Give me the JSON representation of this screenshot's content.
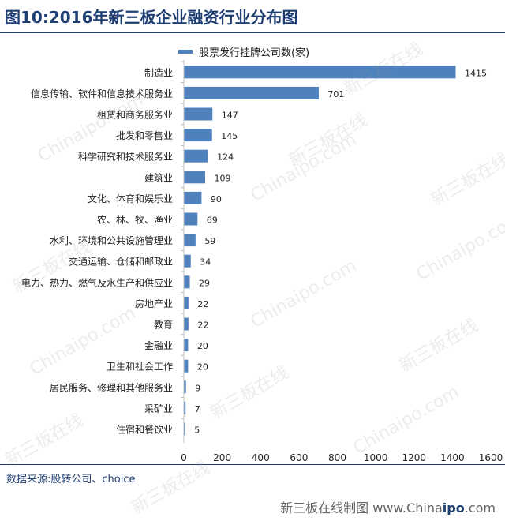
{
  "header": {
    "title": "图10:2016年新三板企业融资行业分布图"
  },
  "colors": {
    "bar": "#4f81bd",
    "title": "#1f3f72"
  },
  "chart_data": {
    "type": "bar",
    "orientation": "horizontal",
    "categories": [
      "制造业",
      "信息传输、软件和信息技术服务业",
      "租赁和商务服务业",
      "批发和零售业",
      "科学研究和技术服务业",
      "建筑业",
      "文化、体育和娱乐业",
      "农、林、牧、渔业",
      "水利、环境和公共设施管理业",
      "交通运输、仓储和邮政业",
      "电力、热力、燃气及水生产和供应业",
      "房地产业",
      "教育",
      "金融业",
      "卫生和社会工作",
      "居民服务、修理和其他服务业",
      "采矿业",
      "住宿和餐饮业"
    ],
    "series": [
      {
        "name": "股票发行挂牌公司数(家)",
        "values": [
          1415,
          701,
          147,
          145,
          124,
          109,
          90,
          69,
          59,
          34,
          29,
          22,
          22,
          20,
          20,
          9,
          7,
          5
        ]
      }
    ],
    "xlim": [
      0,
      1600
    ],
    "xticks": [
      0,
      200,
      400,
      600,
      800,
      1000,
      1200,
      1400,
      1600
    ],
    "legend": "top",
    "grid": false
  },
  "source": "数据来源:股转公司、choice",
  "footer": {
    "prefix": "新三板在线制图  www.China",
    "brand": "ipo",
    "suffix": ".com"
  },
  "watermarks": [
    "新三板在线",
    "Chinaipo.com"
  ]
}
